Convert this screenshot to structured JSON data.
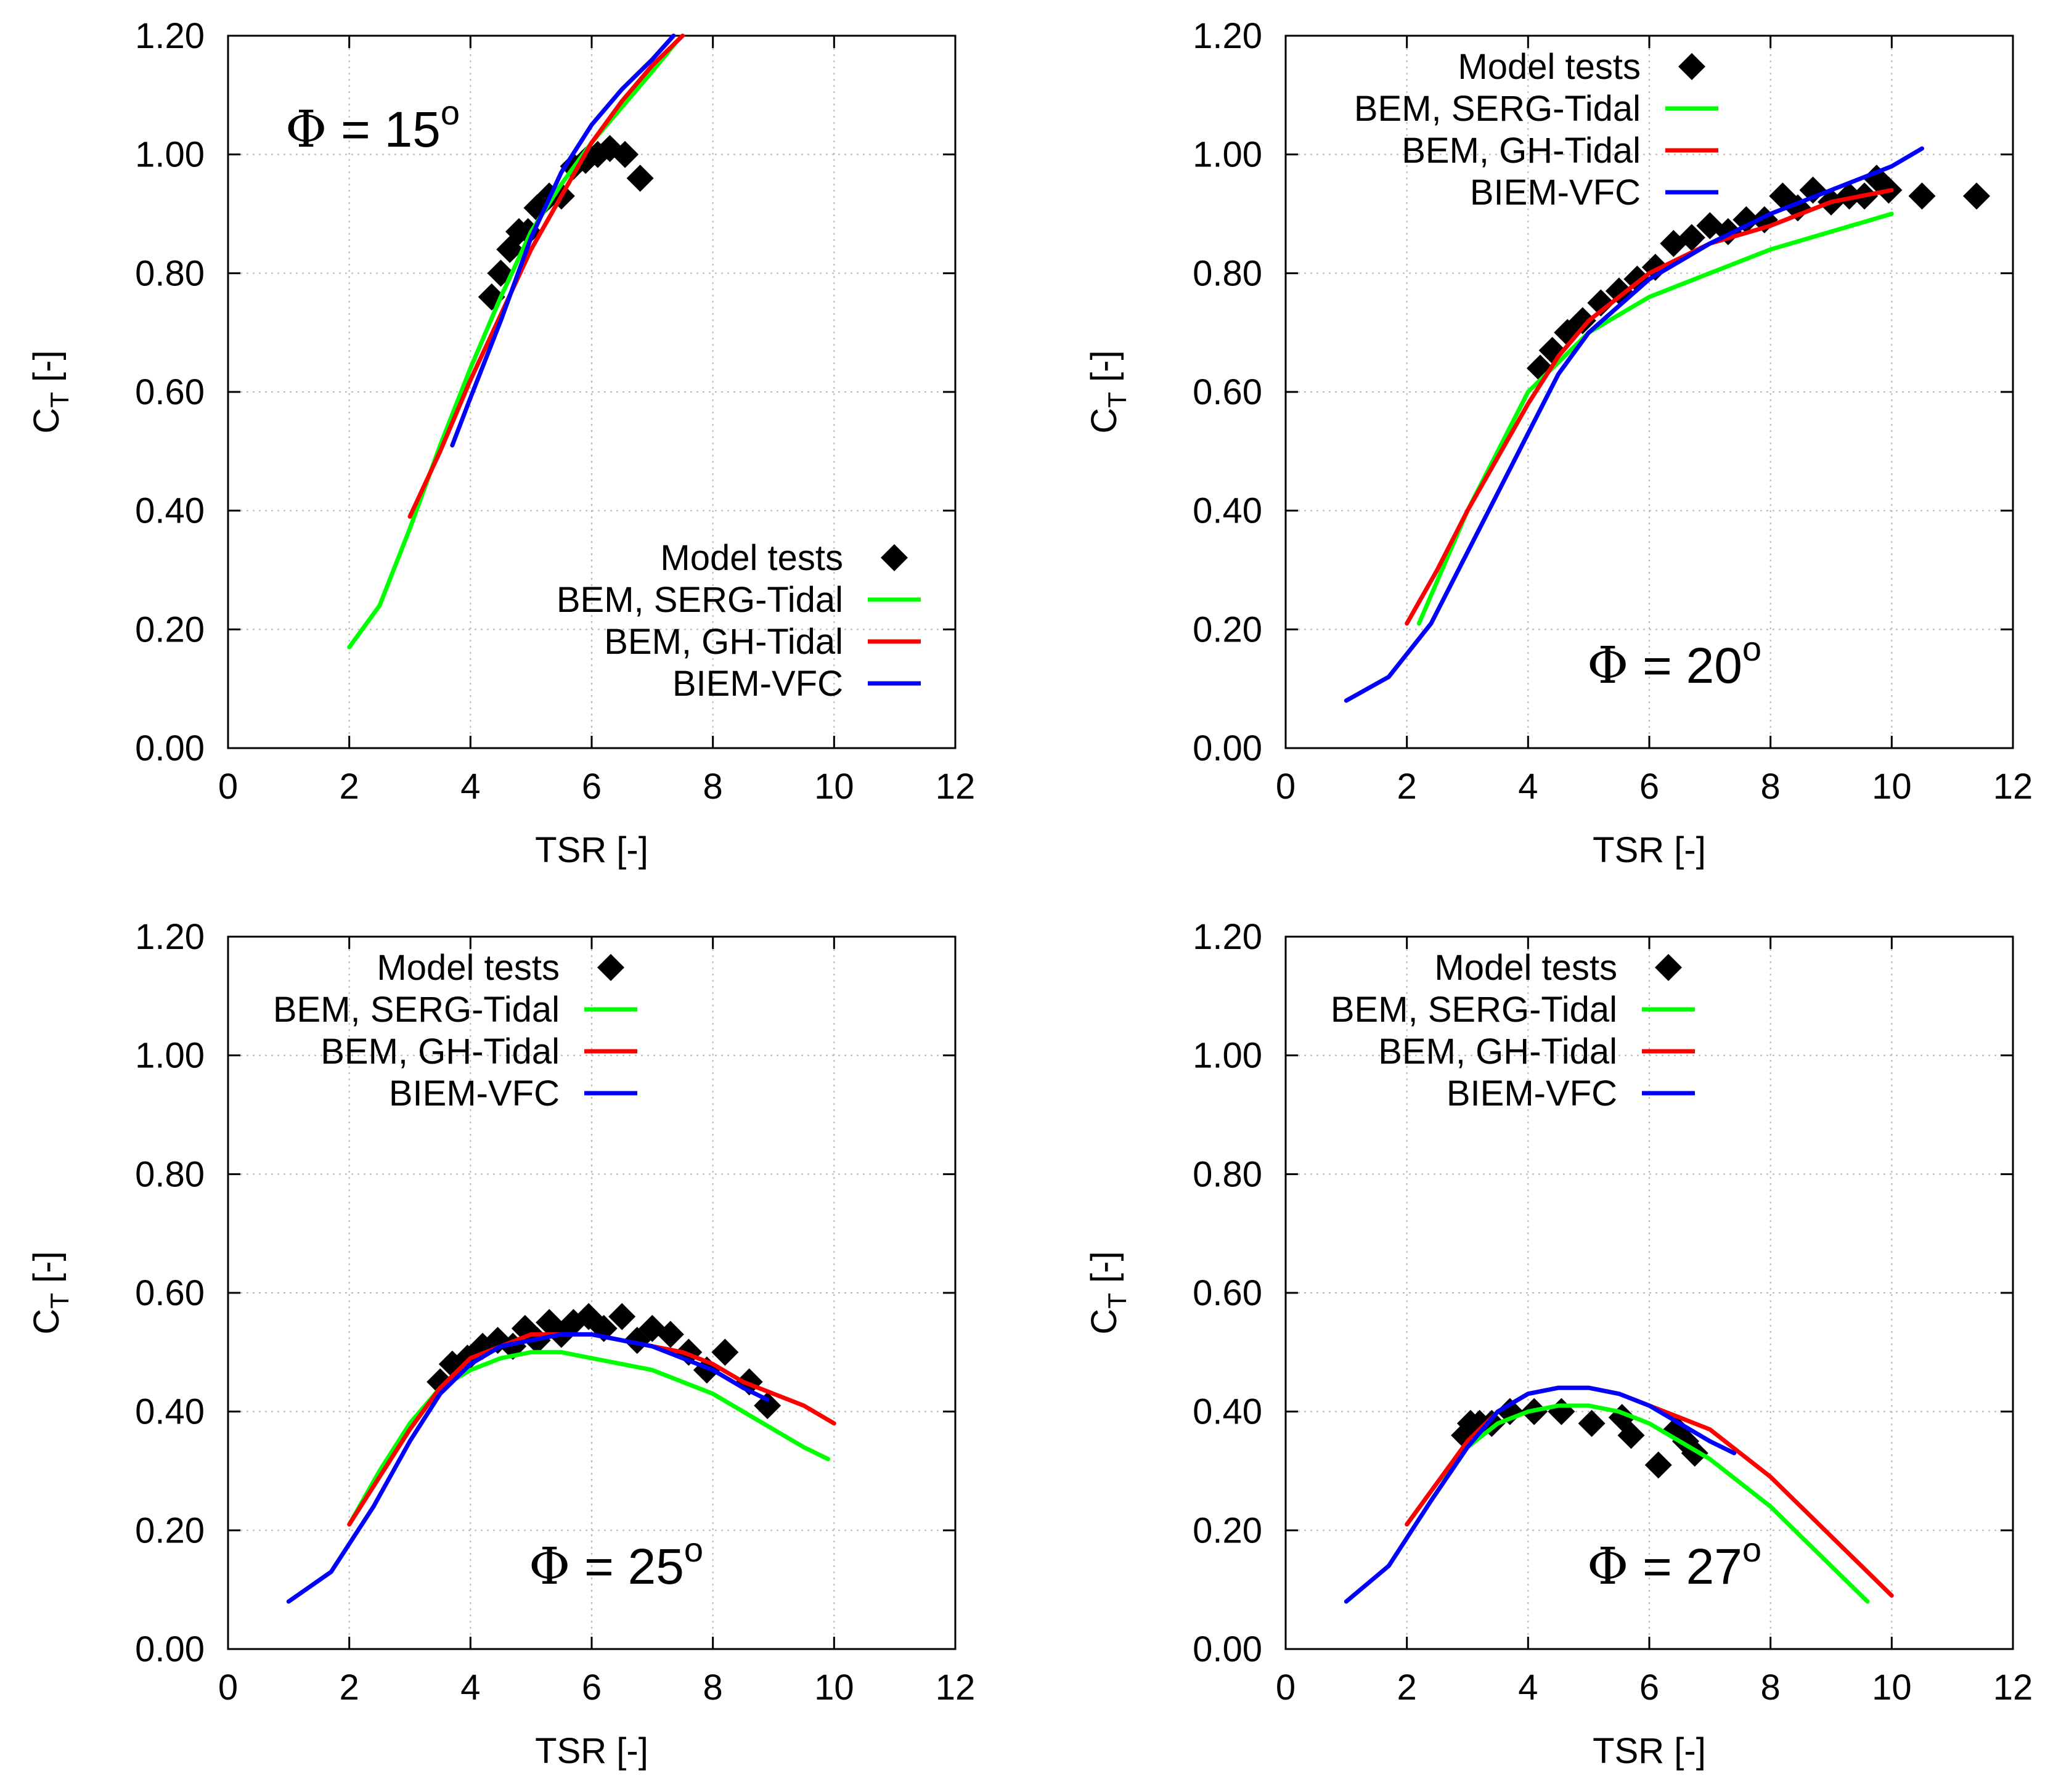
{
  "chart_data": [
    {
      "type": "line",
      "annotation": {
        "symbol": "Φ",
        "text": " = 15",
        "superscript": "o"
      },
      "xlabel": "TSR [-]",
      "ylabel": {
        "main": "C",
        "sub": "T",
        "suffix": " [-]"
      },
      "xlim": [
        0,
        12
      ],
      "ylim": [
        0,
        1.2
      ],
      "xticks": [
        "0",
        "2",
        "4",
        "6",
        "8",
        "10",
        "12"
      ],
      "yticks": [
        "0.00",
        "0.20",
        "0.40",
        "0.60",
        "0.80",
        "1.00",
        "1.20"
      ],
      "grid": true,
      "legend_position": "lower-right",
      "legend": [
        "Model tests",
        "BEM, SERG-Tidal",
        "BEM, GH-Tidal",
        "BIEM-VFC"
      ],
      "series": [
        {
          "name": "Model tests",
          "kind": "marker",
          "color": "#000000",
          "x": [
            4.35,
            4.5,
            4.65,
            4.8,
            4.95,
            5.1,
            5.3,
            5.5,
            5.7,
            5.9,
            6.1,
            6.3,
            6.55,
            6.8
          ],
          "y": [
            0.76,
            0.8,
            0.84,
            0.87,
            0.87,
            0.91,
            0.93,
            0.93,
            0.98,
            0.99,
            1.0,
            1.01,
            1.0,
            0.96
          ]
        },
        {
          "name": "BEM, SERG-Tidal",
          "kind": "line",
          "color": "#00ff00",
          "x": [
            2.0,
            2.5,
            3.0,
            3.5,
            4.0,
            4.5,
            5.0,
            5.5,
            6.0,
            6.5,
            7.0,
            7.4
          ],
          "y": [
            0.17,
            0.24,
            0.37,
            0.51,
            0.64,
            0.76,
            0.87,
            0.95,
            1.02,
            1.08,
            1.14,
            1.19
          ]
        },
        {
          "name": "BEM, GH-Tidal",
          "kind": "line",
          "color": "#ff0000",
          "x": [
            3.0,
            3.5,
            4.0,
            4.5,
            5.0,
            5.5,
            6.0,
            6.5,
            7.0,
            7.5
          ],
          "y": [
            0.39,
            0.5,
            0.62,
            0.73,
            0.84,
            0.93,
            1.02,
            1.09,
            1.15,
            1.2
          ]
        },
        {
          "name": "BIEM-VFC",
          "kind": "line",
          "color": "#0000ff",
          "x": [
            3.7,
            4.0,
            4.5,
            5.0,
            5.5,
            6.0,
            6.5,
            7.0,
            7.35
          ],
          "y": [
            0.51,
            0.59,
            0.72,
            0.86,
            0.97,
            1.05,
            1.11,
            1.16,
            1.2
          ]
        }
      ]
    },
    {
      "type": "line",
      "annotation": {
        "symbol": "Φ",
        "text": " = 20",
        "superscript": "o"
      },
      "xlabel": "TSR [-]",
      "ylabel": {
        "main": "C",
        "sub": "T",
        "suffix": " [-]"
      },
      "xlim": [
        0,
        12
      ],
      "ylim": [
        0,
        1.2
      ],
      "xticks": [
        "0",
        "2",
        "4",
        "6",
        "8",
        "10",
        "12"
      ],
      "yticks": [
        "0.00",
        "0.20",
        "0.40",
        "0.60",
        "0.80",
        "1.00",
        "1.20"
      ],
      "grid": true,
      "legend_position": "top-left",
      "legend": [
        "Model tests",
        "BEM, SERG-Tidal",
        "BEM, GH-Tidal",
        "BIEM-VFC"
      ],
      "series": [
        {
          "name": "Model tests",
          "kind": "marker",
          "color": "#000000",
          "x": [
            4.2,
            4.4,
            4.65,
            4.9,
            5.2,
            5.5,
            5.8,
            6.1,
            6.4,
            6.7,
            7.0,
            7.3,
            7.6,
            7.9,
            8.2,
            8.45,
            8.7,
            9.0,
            9.3,
            9.55,
            9.75,
            9.95,
            10.5,
            11.4
          ],
          "y": [
            0.64,
            0.67,
            0.7,
            0.72,
            0.75,
            0.77,
            0.79,
            0.81,
            0.85,
            0.86,
            0.88,
            0.87,
            0.89,
            0.89,
            0.93,
            0.91,
            0.94,
            0.92,
            0.93,
            0.93,
            0.96,
            0.94,
            0.93,
            0.93
          ]
        },
        {
          "name": "BEM, SERG-Tidal",
          "kind": "line",
          "color": "#00ff00",
          "x": [
            2.2,
            3.0,
            4.0,
            5.0,
            6.0,
            7.0,
            8.0,
            9.0,
            10.0
          ],
          "y": [
            0.21,
            0.4,
            0.6,
            0.7,
            0.76,
            0.8,
            0.84,
            0.87,
            0.9
          ]
        },
        {
          "name": "BEM, GH-Tidal",
          "kind": "line",
          "color": "#ff0000",
          "x": [
            2.0,
            2.5,
            3.0,
            3.5,
            4.0,
            4.5,
            5.0,
            6.0,
            7.0,
            8.0,
            9.0,
            10.0
          ],
          "y": [
            0.21,
            0.3,
            0.4,
            0.49,
            0.58,
            0.66,
            0.72,
            0.8,
            0.85,
            0.88,
            0.92,
            0.94
          ]
        },
        {
          "name": "BIEM-VFC",
          "kind": "line",
          "color": "#0000ff",
          "x": [
            1.0,
            1.7,
            2.4,
            3.0,
            3.5,
            4.0,
            4.5,
            5.0,
            6.0,
            7.0,
            8.0,
            9.0,
            10.0,
            10.5
          ],
          "y": [
            0.08,
            0.12,
            0.21,
            0.33,
            0.43,
            0.53,
            0.63,
            0.7,
            0.79,
            0.85,
            0.9,
            0.94,
            0.98,
            1.01
          ]
        }
      ]
    },
    {
      "type": "line",
      "annotation": {
        "symbol": "Φ",
        "text": " = 25",
        "superscript": "o"
      },
      "xlabel": "TSR [-]",
      "ylabel": {
        "main": "C",
        "sub": "T",
        "suffix": " [-]"
      },
      "xlim": [
        0,
        12
      ],
      "ylim": [
        0,
        1.2
      ],
      "xticks": [
        "0",
        "2",
        "4",
        "6",
        "8",
        "10",
        "12"
      ],
      "yticks": [
        "0.00",
        "0.20",
        "0.40",
        "0.60",
        "0.80",
        "1.00",
        "1.20"
      ],
      "grid": true,
      "legend_position": "top-left",
      "legend": [
        "Model tests",
        "BEM, SERG-Tidal",
        "BEM, GH-Tidal",
        "BIEM-VFC"
      ],
      "series": [
        {
          "name": "Model tests",
          "kind": "marker",
          "color": "#000000",
          "x": [
            3.5,
            3.7,
            3.95,
            4.2,
            4.45,
            4.7,
            4.9,
            5.1,
            5.3,
            5.5,
            5.7,
            5.95,
            6.2,
            6.5,
            6.75,
            7.0,
            7.3,
            7.6,
            7.9,
            8.2,
            8.6,
            8.9
          ],
          "y": [
            0.45,
            0.48,
            0.49,
            0.51,
            0.52,
            0.51,
            0.54,
            0.52,
            0.55,
            0.53,
            0.55,
            0.56,
            0.54,
            0.56,
            0.52,
            0.54,
            0.53,
            0.5,
            0.47,
            0.5,
            0.45,
            0.41
          ]
        },
        {
          "name": "BEM, SERG-Tidal",
          "kind": "line",
          "color": "#00ff00",
          "x": [
            2.0,
            2.5,
            3.0,
            3.5,
            4.0,
            4.5,
            5.0,
            5.5,
            6.0,
            6.5,
            7.0,
            7.5,
            8.0,
            8.5,
            9.0,
            9.5,
            9.9
          ],
          "y": [
            0.21,
            0.3,
            0.38,
            0.44,
            0.47,
            0.49,
            0.5,
            0.5,
            0.49,
            0.48,
            0.47,
            0.45,
            0.43,
            0.4,
            0.37,
            0.34,
            0.32
          ]
        },
        {
          "name": "BEM, GH-Tidal",
          "kind": "line",
          "color": "#ff0000",
          "x": [
            2.0,
            2.5,
            3.0,
            3.5,
            4.0,
            4.5,
            5.0,
            5.5,
            6.0,
            6.5,
            7.0,
            7.5,
            8.0,
            8.5,
            9.0,
            9.5,
            10.0
          ],
          "y": [
            0.21,
            0.29,
            0.37,
            0.44,
            0.49,
            0.51,
            0.53,
            0.53,
            0.53,
            0.52,
            0.51,
            0.5,
            0.48,
            0.45,
            0.43,
            0.41,
            0.38
          ]
        },
        {
          "name": "BIEM-VFC",
          "kind": "line",
          "color": "#0000ff",
          "x": [
            1.0,
            1.7,
            2.4,
            3.0,
            3.5,
            4.0,
            4.5,
            5.0,
            5.5,
            6.0,
            6.5,
            7.0,
            7.5,
            8.0,
            8.5,
            8.9
          ],
          "y": [
            0.08,
            0.13,
            0.24,
            0.35,
            0.43,
            0.48,
            0.51,
            0.52,
            0.53,
            0.53,
            0.52,
            0.51,
            0.49,
            0.47,
            0.44,
            0.42
          ]
        }
      ]
    },
    {
      "type": "line",
      "annotation": {
        "symbol": "Φ",
        "text": " = 27",
        "superscript": "o"
      },
      "xlabel": "TSR [-]",
      "ylabel": {
        "main": "C",
        "sub": "T",
        "suffix": " [-]"
      },
      "xlim": [
        0,
        12
      ],
      "ylim": [
        0,
        1.2
      ],
      "xticks": [
        "0",
        "2",
        "4",
        "6",
        "8",
        "10",
        "12"
      ],
      "yticks": [
        "0.00",
        "0.20",
        "0.40",
        "0.60",
        "0.80",
        "1.00",
        "1.20"
      ],
      "grid": true,
      "legend_position": "top-left",
      "legend": [
        "Model tests",
        "BEM, SERG-Tidal",
        "BEM, GH-Tidal",
        "BIEM-VFC"
      ],
      "series": [
        {
          "name": "Model tests",
          "kind": "marker",
          "color": "#000000",
          "x": [
            2.95,
            3.05,
            3.2,
            3.4,
            3.7,
            4.1,
            4.55,
            5.05,
            5.55,
            5.7,
            6.15,
            6.45,
            6.6,
            6.75
          ],
          "y": [
            0.36,
            0.38,
            0.38,
            0.38,
            0.4,
            0.4,
            0.4,
            0.38,
            0.39,
            0.36,
            0.31,
            0.37,
            0.35,
            0.33
          ]
        },
        {
          "name": "BEM, SERG-Tidal",
          "kind": "line",
          "color": "#00ff00",
          "x": [
            2.0,
            2.5,
            3.0,
            3.5,
            4.0,
            4.5,
            5.0,
            5.5,
            6.0,
            6.5,
            7.0,
            7.5,
            8.0,
            8.5,
            9.0,
            9.6
          ],
          "y": [
            0.21,
            0.28,
            0.34,
            0.38,
            0.4,
            0.41,
            0.41,
            0.4,
            0.38,
            0.35,
            0.32,
            0.28,
            0.24,
            0.19,
            0.14,
            0.08
          ]
        },
        {
          "name": "BEM, GH-Tidal",
          "kind": "line",
          "color": "#ff0000",
          "x": [
            2.0,
            2.5,
            3.0,
            3.5,
            4.0,
            4.5,
            5.0,
            5.5,
            6.0,
            6.5,
            7.0,
            7.5,
            8.0,
            8.5,
            9.0,
            9.5,
            10.0
          ],
          "y": [
            0.21,
            0.28,
            0.35,
            0.4,
            0.43,
            0.44,
            0.44,
            0.43,
            0.41,
            0.39,
            0.37,
            0.33,
            0.29,
            0.24,
            0.19,
            0.14,
            0.09
          ]
        },
        {
          "name": "BIEM-VFC",
          "kind": "line",
          "color": "#0000ff",
          "x": [
            1.0,
            1.7,
            2.4,
            3.0,
            3.5,
            4.0,
            4.5,
            5.0,
            5.5,
            6.0,
            6.5,
            7.0,
            7.4
          ],
          "y": [
            0.08,
            0.14,
            0.25,
            0.34,
            0.4,
            0.43,
            0.44,
            0.44,
            0.43,
            0.41,
            0.38,
            0.35,
            0.33
          ]
        }
      ]
    }
  ]
}
